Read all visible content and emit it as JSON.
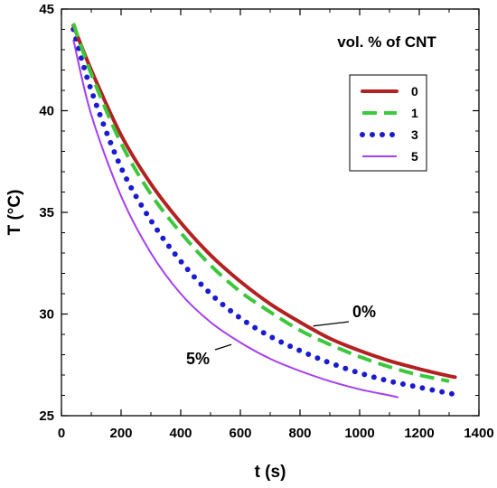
{
  "chart_data": {
    "type": "line",
    "title": "",
    "xlabel": "t (s)",
    "ylabel": "T (°C)",
    "xlim": [
      0,
      1400
    ],
    "ylim": [
      25,
      45
    ],
    "xticks": [
      "0",
      "200",
      "400",
      "600",
      "800",
      "1000",
      "1200",
      "1400"
    ],
    "yticks": [
      "25",
      "30",
      "35",
      "40",
      "45"
    ],
    "grid": false,
    "legend": {
      "title": "vol. % of CNT",
      "position": "top-right"
    },
    "series": [
      {
        "name": "0",
        "color": "#b22222",
        "style": "solid-thick",
        "x": [
          40,
          100,
          200,
          300,
          400,
          500,
          600,
          700,
          800,
          900,
          1000,
          1100,
          1200,
          1300,
          1320
        ],
        "y": [
          44.2,
          42.0,
          38.8,
          36.4,
          34.5,
          32.9,
          31.6,
          30.5,
          29.6,
          28.8,
          28.2,
          27.7,
          27.3,
          26.95,
          26.9
        ]
      },
      {
        "name": "1",
        "color": "#3cc83c",
        "style": "dashed",
        "x": [
          40,
          100,
          200,
          300,
          400,
          500,
          600,
          700,
          800,
          900,
          1000,
          1100,
          1200,
          1300
        ],
        "y": [
          44.3,
          41.8,
          38.4,
          35.9,
          34.0,
          32.4,
          31.1,
          30.1,
          29.2,
          28.5,
          27.9,
          27.4,
          27.0,
          26.7
        ]
      },
      {
        "name": "3",
        "color": "#1a1ad0",
        "style": "dotted",
        "x": [
          40,
          100,
          200,
          300,
          400,
          500,
          600,
          700,
          800,
          900,
          1000,
          1100,
          1200,
          1300,
          1320
        ],
        "y": [
          44.0,
          41.0,
          37.2,
          34.6,
          32.6,
          31.0,
          29.8,
          28.9,
          28.2,
          27.6,
          27.1,
          26.7,
          26.4,
          26.1,
          26.05
        ]
      },
      {
        "name": "5",
        "color": "#a53ef0",
        "style": "solid-thin",
        "x": [
          40,
          100,
          200,
          300,
          400,
          500,
          600,
          700,
          800,
          900,
          1000,
          1100,
          1130
        ],
        "y": [
          43.5,
          39.8,
          35.8,
          33.0,
          31.0,
          29.6,
          28.6,
          27.8,
          27.2,
          26.7,
          26.3,
          26.0,
          25.9
        ]
      }
    ],
    "annotations": [
      {
        "text": "0%",
        "anchor_x": 850,
        "anchor_y": 29.5
      },
      {
        "text": "5%",
        "anchor_x": 570,
        "anchor_y": 28.5
      }
    ]
  }
}
